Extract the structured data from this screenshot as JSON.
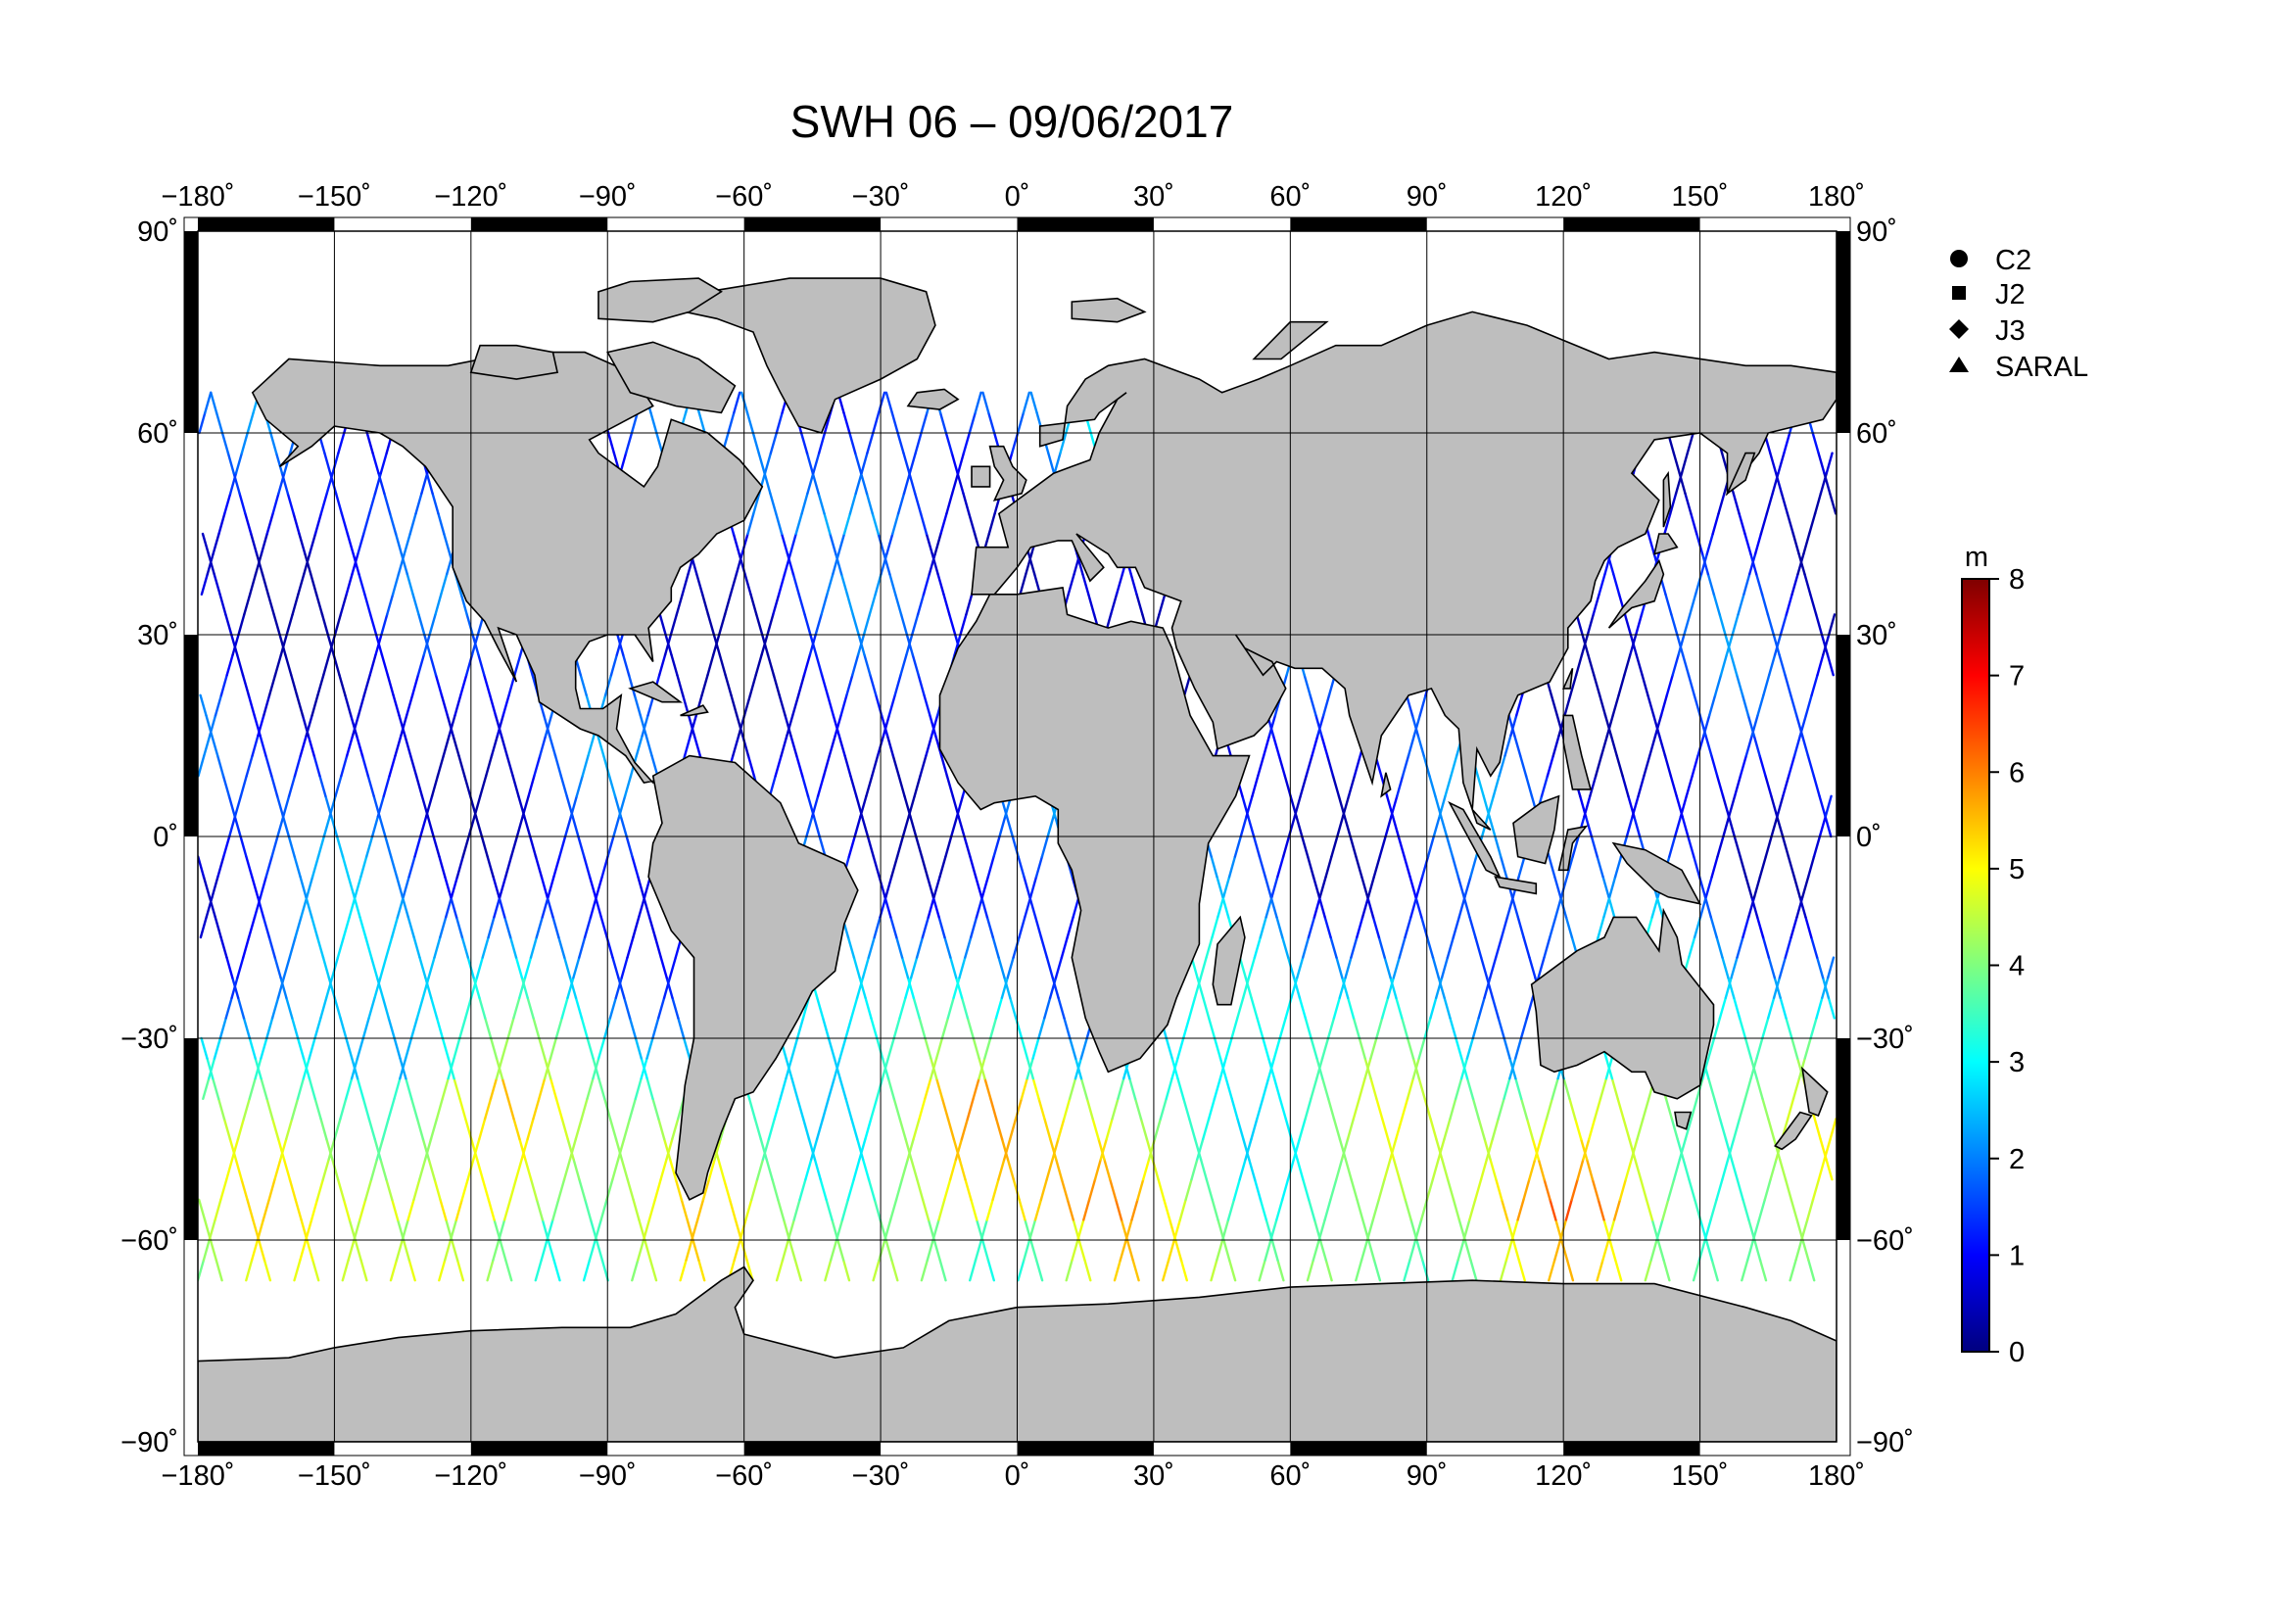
{
  "title": "SWH 06 – 09/06/2017",
  "map": {
    "lon_ticks": [
      -180,
      -150,
      -120,
      -90,
      -60,
      -30,
      0,
      30,
      60,
      90,
      120,
      150,
      180
    ],
    "lat_ticks": [
      90,
      60,
      30,
      0,
      -30,
      -60,
      -90
    ],
    "lon_labels": [
      "−180˚",
      "−150˚",
      "−120˚",
      "−90˚",
      "−60˚",
      "−30˚",
      "0˚",
      "30˚",
      "60˚",
      "90˚",
      "120˚",
      "150˚",
      "180˚"
    ],
    "lat_labels": [
      "90˚",
      "60˚",
      "30˚",
      "0˚",
      "−30˚",
      "−60˚",
      "−90˚"
    ],
    "land_color": "#bebebe",
    "ocean_color": "#ffffff"
  },
  "legend": {
    "items": [
      {
        "label": "C2",
        "symbol": "circle"
      },
      {
        "label": "J2",
        "symbol": "square"
      },
      {
        "label": "J3",
        "symbol": "diamond"
      },
      {
        "label": "SARAL",
        "symbol": "triangle"
      }
    ]
  },
  "colorbar": {
    "unit": "m",
    "min": 0,
    "max": 8,
    "tick_labels": [
      "8",
      "7",
      "6",
      "5",
      "4",
      "3",
      "2",
      "1",
      "0"
    ],
    "colors": [
      "#00007f",
      "#0000ff",
      "#007fff",
      "#00ffff",
      "#7fff7f",
      "#ffff00",
      "#ff7f00",
      "#ff0000",
      "#7f0000"
    ]
  }
}
